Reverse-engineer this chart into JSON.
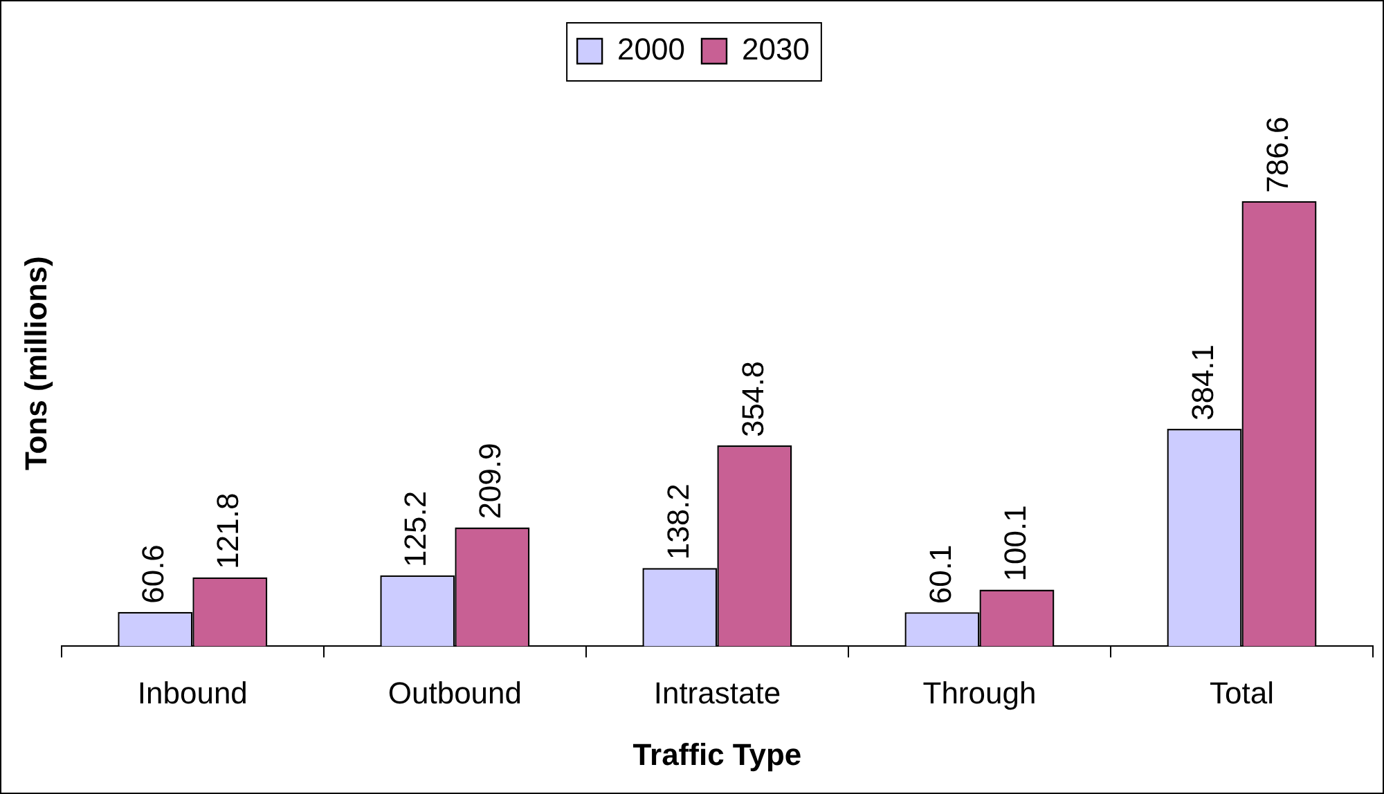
{
  "chart_data": {
    "type": "bar",
    "xlabel": "Traffic Type",
    "ylabel": "Tons (millions)",
    "categories": [
      "Inbound",
      "Outbound",
      "Intrastate",
      "Through",
      "Total"
    ],
    "series": [
      {
        "name": "2000",
        "color": "#ccccff",
        "values": [
          60.6,
          125.2,
          138.2,
          60.1,
          384.1
        ]
      },
      {
        "name": "2030",
        "color": "#c86094",
        "values": [
          121.8,
          209.9,
          354.8,
          100.1,
          786.6
        ]
      }
    ],
    "data_labels": true,
    "legend": "top",
    "grid": false
  }
}
